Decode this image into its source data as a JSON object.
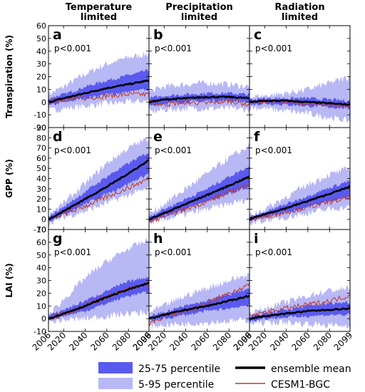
{
  "columns": [
    "Temperature\nlimited",
    "Precipitation\nlimited",
    "Radiation\nlimited"
  ],
  "row_ylabels": [
    "Transpiration (%)",
    "GPP (%)",
    "LAI (%)"
  ],
  "x_ticks": [
    2006,
    2020,
    2040,
    2060,
    2080,
    2099
  ],
  "legend": {
    "band_25_75": "25-75 percentile",
    "band_5_95": "5-95 percentile",
    "ensemble_mean": "ensemble mean",
    "cesm": "CESM1-BGC"
  },
  "colors": {
    "band_25_75": "#5a5aee",
    "band_5_95": "#b8b8f4",
    "ensemble_mean": "#000000",
    "cesm": "#c0392b"
  },
  "chart_data": [
    {
      "type": "area",
      "panel": "a",
      "row": 0,
      "col": 0,
      "pvalue": "p<0.001",
      "ylim": [
        -20,
        60
      ],
      "yticks": [
        -20,
        -10,
        0,
        10,
        20,
        30,
        40,
        50,
        60
      ],
      "x": [
        2006,
        2020,
        2040,
        2060,
        2080,
        2099
      ],
      "mean": [
        0,
        3,
        7,
        11,
        14,
        17
      ],
      "p25": [
        -3,
        0,
        3,
        6,
        8,
        10
      ],
      "p75": [
        3,
        6,
        12,
        17,
        21,
        25
      ],
      "p5": [
        -7,
        -5,
        -3,
        -1,
        0,
        1
      ],
      "p95": [
        6,
        12,
        22,
        30,
        35,
        38
      ],
      "cesm": [
        0,
        2,
        3,
        5,
        6,
        6
      ]
    },
    {
      "type": "area",
      "panel": "b",
      "row": 0,
      "col": 1,
      "pvalue": "p<0.001",
      "ylim": [
        -20,
        60
      ],
      "yticks": [
        -20,
        -10,
        0,
        10,
        20,
        30,
        40,
        50,
        60
      ],
      "x": [
        2006,
        2020,
        2040,
        2060,
        2080,
        2099
      ],
      "mean": [
        0,
        2,
        3,
        4,
        4,
        3
      ],
      "p25": [
        -3,
        -1,
        0,
        1,
        1,
        0
      ],
      "p75": [
        3,
        5,
        6,
        7,
        7,
        6
      ],
      "p5": [
        -8,
        -6,
        -5,
        -5,
        -5,
        -6
      ],
      "p95": [
        8,
        12,
        14,
        15,
        14,
        12
      ],
      "cesm": [
        0,
        -2,
        0,
        -1,
        1,
        -2
      ]
    },
    {
      "type": "area",
      "panel": "c",
      "row": 0,
      "col": 2,
      "pvalue": "p<0.001",
      "ylim": [
        -20,
        60
      ],
      "yticks": [
        -20,
        -10,
        0,
        10,
        20,
        30,
        40,
        50,
        60
      ],
      "x": [
        2006,
        2020,
        2040,
        2060,
        2080,
        2099
      ],
      "mean": [
        0,
        1,
        1,
        0,
        -1,
        -2
      ],
      "p25": [
        -2,
        -1,
        -2,
        -3,
        -4,
        -5
      ],
      "p75": [
        2,
        3,
        3,
        3,
        2,
        1
      ],
      "p5": [
        -4,
        -5,
        -7,
        -9,
        -12,
        -15
      ],
      "p95": [
        4,
        5,
        7,
        10,
        15,
        20
      ],
      "cesm": [
        0,
        1,
        0,
        -1,
        -2,
        -4
      ]
    },
    {
      "type": "area",
      "panel": "d",
      "row": 1,
      "col": 0,
      "pvalue": "p<0.001",
      "ylim": [
        -10,
        90
      ],
      "yticks": [
        -10,
        0,
        10,
        20,
        30,
        40,
        50,
        60,
        70,
        80,
        90
      ],
      "x": [
        2006,
        2020,
        2040,
        2060,
        2080,
        2099
      ],
      "mean": [
        0,
        8,
        20,
        32,
        45,
        58
      ],
      "p25": [
        -2,
        5,
        15,
        25,
        35,
        45
      ],
      "p75": [
        3,
        12,
        27,
        42,
        55,
        66
      ],
      "p5": [
        -4,
        2,
        8,
        16,
        24,
        30
      ],
      "p95": [
        5,
        16,
        35,
        55,
        70,
        80
      ],
      "cesm": [
        0,
        5,
        13,
        22,
        31,
        40
      ]
    },
    {
      "type": "area",
      "panel": "e",
      "row": 1,
      "col": 1,
      "pvalue": "p<0.001",
      "ylim": [
        -10,
        90
      ],
      "yticks": [
        -10,
        0,
        10,
        20,
        30,
        40,
        50,
        60,
        70,
        80,
        90
      ],
      "x": [
        2006,
        2020,
        2040,
        2060,
        2080,
        2099
      ],
      "mean": [
        0,
        6,
        15,
        24,
        33,
        42
      ],
      "p25": [
        -2,
        3,
        10,
        18,
        25,
        32
      ],
      "p75": [
        3,
        10,
        20,
        30,
        42,
        52
      ],
      "p5": [
        -4,
        0,
        5,
        10,
        15,
        20
      ],
      "p95": [
        5,
        15,
        30,
        45,
        60,
        72
      ],
      "cesm": [
        -3,
        3,
        10,
        18,
        26,
        35
      ]
    },
    {
      "type": "area",
      "panel": "f",
      "row": 1,
      "col": 2,
      "pvalue": "p<0.001",
      "ylim": [
        -10,
        90
      ],
      "yticks": [
        -10,
        0,
        10,
        20,
        30,
        40,
        50,
        60,
        70,
        80,
        90
      ],
      "x": [
        2006,
        2020,
        2040,
        2060,
        2080,
        2099
      ],
      "mean": [
        0,
        5,
        11,
        18,
        25,
        32
      ],
      "p25": [
        -2,
        2,
        7,
        12,
        18,
        22
      ],
      "p75": [
        2,
        7,
        15,
        23,
        31,
        38
      ],
      "p5": [
        -4,
        -1,
        2,
        6,
        10,
        12
      ],
      "p95": [
        4,
        10,
        22,
        34,
        44,
        50
      ],
      "cesm": [
        0,
        2,
        7,
        12,
        17,
        21
      ]
    },
    {
      "type": "area",
      "panel": "g",
      "row": 2,
      "col": 0,
      "pvalue": "p<0.001",
      "ylim": [
        -10,
        70
      ],
      "yticks": [
        -10,
        0,
        10,
        20,
        30,
        40,
        50,
        60,
        70
      ],
      "x": [
        2006,
        2020,
        2040,
        2060,
        2080,
        2099
      ],
      "mean": [
        0,
        4,
        10,
        17,
        23,
        28
      ],
      "p25": [
        -1,
        2,
        6,
        12,
        18,
        21
      ],
      "p75": [
        2,
        7,
        14,
        22,
        29,
        33
      ],
      "p5": [
        -3,
        -1,
        0,
        2,
        4,
        5
      ],
      "p95": [
        3,
        15,
        32,
        45,
        55,
        62
      ],
      "cesm": [
        0,
        4,
        10,
        17,
        23,
        28
      ]
    },
    {
      "type": "area",
      "panel": "h",
      "row": 2,
      "col": 1,
      "pvalue": "p<0.001",
      "ylim": [
        -10,
        70
      ],
      "yticks": [
        -10,
        0,
        10,
        20,
        30,
        40,
        50,
        60,
        70
      ],
      "x": [
        2006,
        2020,
        2040,
        2060,
        2080,
        2099
      ],
      "mean": [
        0,
        3,
        7,
        10,
        14,
        18
      ],
      "p25": [
        -2,
        0,
        3,
        6,
        8,
        11
      ],
      "p75": [
        2,
        5,
        10,
        14,
        19,
        24
      ],
      "p5": [
        -6,
        -5,
        -4,
        -3,
        -2,
        -1
      ],
      "p95": [
        5,
        10,
        18,
        24,
        30,
        35
      ],
      "cesm": [
        -5,
        2,
        6,
        12,
        20,
        27
      ]
    },
    {
      "type": "area",
      "panel": "i",
      "row": 2,
      "col": 2,
      "pvalue": "p<0.001",
      "ylim": [
        -10,
        70
      ],
      "yticks": [
        -10,
        0,
        10,
        20,
        30,
        40,
        50,
        60,
        70
      ],
      "x": [
        2006,
        2020,
        2040,
        2060,
        2080,
        2099
      ],
      "mean": [
        0,
        2,
        4,
        6,
        7,
        8
      ],
      "p25": [
        -2,
        0,
        1,
        2,
        3,
        3
      ],
      "p75": [
        2,
        4,
        7,
        10,
        12,
        13
      ],
      "p5": [
        -4,
        -3,
        -3,
        -4,
        -5,
        -6
      ],
      "p95": [
        4,
        8,
        13,
        18,
        22,
        24
      ],
      "cesm": [
        2,
        5,
        8,
        11,
        14,
        18
      ]
    }
  ]
}
